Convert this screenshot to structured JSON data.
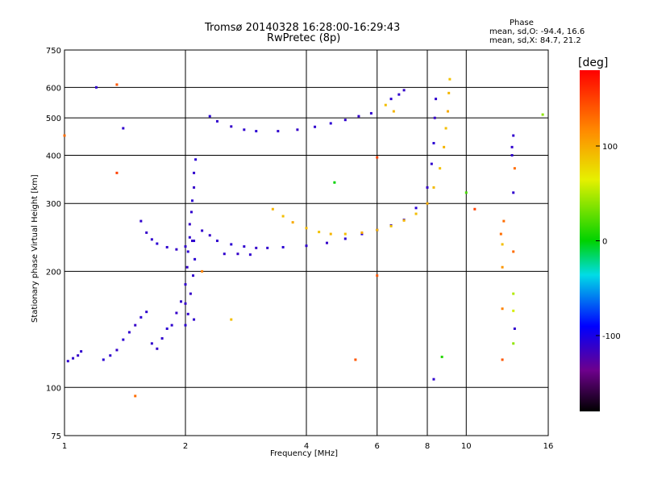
{
  "chart_data": {
    "type": "scatter",
    "title": "Tromsø 20140328 16:28:00-16:29:43",
    "subtitle": "RwPretec (8p)",
    "xlabel": "Frequency [MHz]",
    "ylabel": "Stationary phase Virtual Height [km]",
    "x_scale": "log",
    "y_scale": "log",
    "xlim": [
      1,
      16
    ],
    "ylim": [
      75,
      750
    ],
    "x_ticks": [
      "1",
      "2",
      "4",
      "6",
      "8",
      "10",
      "16"
    ],
    "y_ticks": [
      "75",
      "100",
      "200",
      "300",
      "400",
      "500",
      "600",
      "750"
    ],
    "grid": true,
    "phase_stats": {
      "heading": "Phase",
      "line_o": "mean, sd,O: -94.4, 16.6",
      "line_x": "mean, sd,X:  84.7, 21.2"
    },
    "colorbar": {
      "label": "[deg]",
      "range": [
        -180,
        180
      ],
      "ticks": [
        "100",
        "0",
        "-100"
      ],
      "tick_values": [
        100,
        0,
        -100
      ]
    },
    "series": [
      {
        "points": [
          [
            1.02,
            117,
            -110
          ],
          [
            1.05,
            119,
            -110
          ],
          [
            1.08,
            121,
            -112
          ],
          [
            1.1,
            124,
            -110
          ],
          [
            1.25,
            118,
            -108
          ],
          [
            1.3,
            121,
            -110
          ],
          [
            1.35,
            125,
            -112
          ],
          [
            1.4,
            133,
            -108
          ],
          [
            1.45,
            139,
            -110
          ],
          [
            1.5,
            145,
            -112
          ],
          [
            1.55,
            152,
            -108
          ],
          [
            1.6,
            157,
            -110
          ],
          [
            1.65,
            130,
            -110
          ],
          [
            1.7,
            126,
            -112
          ],
          [
            1.75,
            134,
            -110
          ],
          [
            1.8,
            142,
            -108
          ],
          [
            1.85,
            145,
            -110
          ],
          [
            1.9,
            156,
            -112
          ],
          [
            1.95,
            167,
            -110
          ]
        ]
      },
      {
        "points": [
          [
            2.0,
            145,
            -108
          ],
          [
            2.0,
            165,
            -112
          ],
          [
            2.0,
            185,
            -110
          ],
          [
            2.02,
            205,
            -112
          ],
          [
            2.03,
            225,
            -108
          ],
          [
            2.05,
            245,
            -110
          ],
          [
            2.05,
            265,
            -112
          ],
          [
            2.07,
            285,
            -110
          ],
          [
            2.08,
            305,
            -108
          ],
          [
            2.1,
            330,
            -112
          ],
          [
            2.1,
            360,
            -110
          ],
          [
            2.12,
            390,
            -108
          ],
          [
            2.03,
            155,
            -110
          ],
          [
            2.06,
            175,
            -112
          ],
          [
            2.09,
            195,
            -110
          ],
          [
            2.11,
            215,
            -108
          ],
          [
            2.1,
            150,
            -110
          ],
          [
            2.08,
            240,
            -112
          ]
        ]
      },
      {
        "points": [
          [
            1.55,
            270,
            -110
          ],
          [
            1.6,
            252,
            -112
          ],
          [
            1.65,
            242,
            -110
          ],
          [
            1.7,
            236,
            -108
          ],
          [
            1.8,
            231,
            -110
          ],
          [
            1.9,
            228,
            -112
          ],
          [
            2.0,
            232,
            -110
          ],
          [
            2.1,
            240,
            -108
          ],
          [
            2.2,
            255,
            -110
          ],
          [
            2.3,
            248,
            -112
          ],
          [
            2.4,
            240,
            -110
          ],
          [
            2.6,
            235,
            -108
          ],
          [
            2.8,
            232,
            -110
          ],
          [
            3.0,
            230,
            -112
          ],
          [
            3.2,
            230,
            -110
          ],
          [
            3.5,
            231,
            -108
          ],
          [
            4.0,
            233,
            -110
          ],
          [
            4.5,
            237,
            -112
          ],
          [
            5.0,
            243,
            -110
          ],
          [
            5.5,
            250,
            -108
          ],
          [
            6.0,
            256,
            -110
          ],
          [
            6.5,
            263,
            -112
          ],
          [
            7.0,
            272,
            -110
          ],
          [
            7.5,
            292,
            -108
          ],
          [
            8.0,
            330,
            -112
          ],
          [
            8.2,
            380,
            -110
          ],
          [
            8.3,
            430,
            -108
          ],
          [
            8.35,
            500,
            -112
          ],
          [
            8.4,
            560,
            -110
          ],
          [
            2.5,
            222,
            -110
          ],
          [
            2.7,
            222,
            -112
          ],
          [
            2.9,
            221,
            -110
          ]
        ]
      },
      {
        "points": [
          [
            2.3,
            505,
            -108
          ],
          [
            2.4,
            490,
            -110
          ],
          [
            2.6,
            475,
            -112
          ],
          [
            2.8,
            466,
            -110
          ],
          [
            3.0,
            462,
            -108
          ],
          [
            3.4,
            462,
            -110
          ],
          [
            3.8,
            466,
            -112
          ],
          [
            4.2,
            474,
            -110
          ],
          [
            4.6,
            484,
            -108
          ],
          [
            5.0,
            494,
            -110
          ],
          [
            5.4,
            505,
            -112
          ],
          [
            5.8,
            514,
            -110
          ],
          [
            6.5,
            560,
            -108
          ],
          [
            6.8,
            575,
            -110
          ],
          [
            7.0,
            590,
            -112
          ]
        ]
      },
      {
        "points": [
          [
            3.3,
            290,
            95
          ],
          [
            3.5,
            278,
            90
          ],
          [
            3.7,
            268,
            100
          ],
          [
            4.0,
            259,
            92
          ],
          [
            4.3,
            253,
            88
          ],
          [
            4.6,
            250,
            95
          ],
          [
            5.0,
            250,
            90
          ],
          [
            5.5,
            252,
            100
          ],
          [
            6.0,
            256,
            94
          ],
          [
            6.5,
            262,
            88
          ],
          [
            7.0,
            271,
            95
          ],
          [
            7.5,
            282,
            90
          ],
          [
            8.0,
            300,
            100
          ],
          [
            8.3,
            330,
            92
          ],
          [
            8.6,
            370,
            88
          ],
          [
            8.8,
            420,
            95
          ],
          [
            8.9,
            470,
            90
          ],
          [
            9.0,
            520,
            100
          ],
          [
            9.05,
            580,
            94
          ],
          [
            9.1,
            630,
            88
          ],
          [
            6.3,
            540,
            90
          ],
          [
            6.6,
            520,
            95
          ]
        ]
      },
      {
        "points": [
          [
            1.0,
            450,
            130
          ],
          [
            1.35,
            610,
            140
          ],
          [
            1.35,
            360,
            150
          ],
          [
            1.5,
            95,
            130
          ],
          [
            1.4,
            470,
            -110
          ],
          [
            1.2,
            600,
            -110
          ],
          [
            2.2,
            200,
            120
          ],
          [
            2.6,
            150,
            90
          ],
          [
            4.7,
            340,
            0
          ],
          [
            5.3,
            118,
            140
          ],
          [
            6.0,
            395,
            150
          ],
          [
            6.0,
            195,
            140
          ],
          [
            8.3,
            105,
            -110
          ],
          [
            8.7,
            120,
            10
          ],
          [
            10.0,
            320,
            20
          ],
          [
            10.5,
            290,
            150
          ],
          [
            12.2,
            250,
            130
          ],
          [
            12.3,
            235,
            90
          ],
          [
            12.3,
            205,
            110
          ],
          [
            12.3,
            160,
            120
          ],
          [
            12.3,
            118,
            140
          ],
          [
            13.0,
            420,
            -110
          ],
          [
            13.0,
            400,
            -110
          ],
          [
            13.1,
            450,
            -110
          ],
          [
            13.1,
            320,
            -110
          ],
          [
            13.2,
            370,
            130
          ],
          [
            13.1,
            175,
            50
          ],
          [
            13.1,
            158,
            60
          ],
          [
            13.2,
            142,
            -110
          ],
          [
            13.1,
            130,
            40
          ],
          [
            12.4,
            270,
            130
          ],
          [
            13.1,
            225,
            130
          ],
          [
            15.5,
            510,
            40
          ]
        ]
      }
    ]
  }
}
